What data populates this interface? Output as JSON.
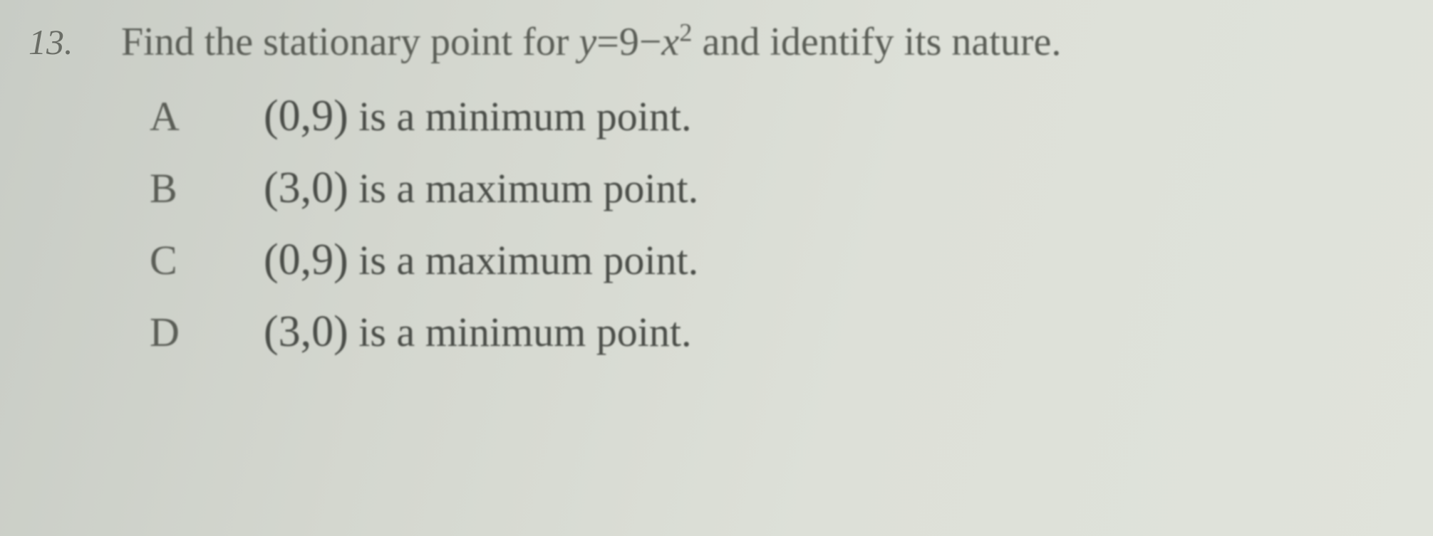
{
  "question": {
    "number": "13.",
    "text_part1": "Find the stationary point for ",
    "equation_var": "y",
    "equation_eq": "=",
    "equation_rhs": "9−",
    "equation_var2": "x",
    "equation_exp": "2",
    "text_part2": " and identify its nature."
  },
  "options": [
    {
      "letter": "A",
      "coord": "(0,9)",
      "text": " is a minimum point."
    },
    {
      "letter": "B",
      "coord": "(3,0)",
      "text": " is a maximum point."
    },
    {
      "letter": "C",
      "coord": "(0,9)",
      "text": " is a maximum point."
    },
    {
      "letter": "D",
      "coord": "(3,0)",
      "text": " is a minimum point."
    }
  ],
  "styling": {
    "background_gradient": [
      "#c8ccc5",
      "#d4d7cf",
      "#dde0d8",
      "#e0e3db"
    ],
    "text_color": "#4a4d48",
    "number_color": "#6a6d66",
    "question_fontsize": 56,
    "option_fontsize": 58,
    "font_family": "Times New Roman"
  }
}
